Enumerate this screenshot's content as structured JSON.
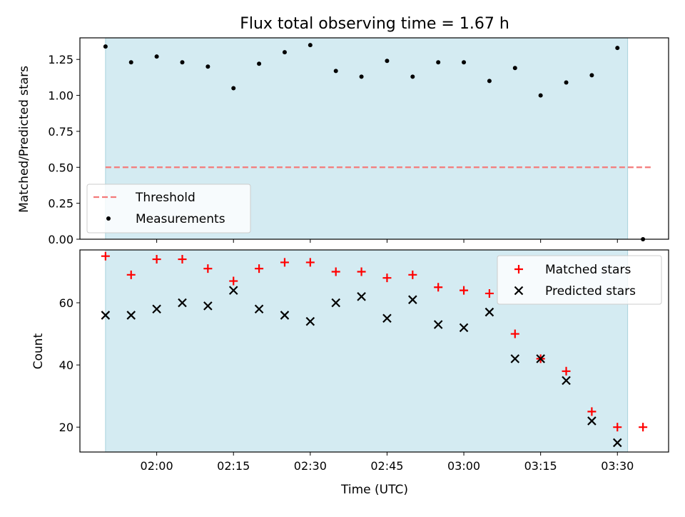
{
  "chart_data": {
    "title": "Flux total observing time = 1.67 h",
    "xlabel": "Time (UTC)",
    "x_ticks": [
      "02:00",
      "02:15",
      "02:30",
      "02:45",
      "03:00",
      "03:15",
      "03:30"
    ],
    "x_range": [
      "01:45",
      "03:40"
    ],
    "shaded_span": [
      "01:50",
      "03:32"
    ],
    "shade_color": "#d4ebf2",
    "panels": [
      {
        "type": "scatter",
        "ylabel": "Matched/Predicted stars",
        "ylim": [
          0,
          1.4
        ],
        "y_ticks": [
          "0.00",
          "0.25",
          "0.50",
          "0.75",
          "1.00",
          "1.25"
        ],
        "legend_position": "lower-left",
        "threshold": {
          "name": "Threshold",
          "value": 0.5,
          "x_start": "01:50",
          "x_end": "03:37",
          "color": "#f47a7a"
        },
        "series": [
          {
            "name": "Measurements",
            "marker": "dot",
            "color": "#000000",
            "x": [
              "01:50",
              "01:55",
              "02:00",
              "02:05",
              "02:10",
              "02:15",
              "02:20",
              "02:25",
              "02:30",
              "02:35",
              "02:40",
              "02:45",
              "02:50",
              "02:55",
              "03:00",
              "03:05",
              "03:10",
              "03:15",
              "03:20",
              "03:25",
              "03:30",
              "03:35"
            ],
            "y": [
              1.34,
              1.23,
              1.27,
              1.23,
              1.2,
              1.05,
              1.22,
              1.3,
              1.35,
              1.17,
              1.13,
              1.24,
              1.13,
              1.23,
              1.23,
              1.1,
              1.19,
              1.0,
              1.09,
              1.14,
              1.33,
              0.0
            ]
          }
        ]
      },
      {
        "type": "scatter",
        "ylabel": "Count",
        "ylim": [
          12,
          77
        ],
        "y_ticks": [
          "20",
          "40",
          "60"
        ],
        "legend_position": "upper-right",
        "series": [
          {
            "name": "Matched stars",
            "marker": "plus",
            "color": "#ff0000",
            "x": [
              "01:50",
              "01:55",
              "02:00",
              "02:05",
              "02:10",
              "02:15",
              "02:20",
              "02:25",
              "02:30",
              "02:35",
              "02:40",
              "02:45",
              "02:50",
              "02:55",
              "03:00",
              "03:05",
              "03:10",
              "03:15",
              "03:20",
              "03:25",
              "03:30",
              "03:35"
            ],
            "y": [
              75,
              69,
              74,
              74,
              71,
              67,
              71,
              73,
              73,
              70,
              70,
              68,
              69,
              65,
              64,
              63,
              50,
              42,
              38,
              25,
              20,
              20
            ]
          },
          {
            "name": "Predicted stars",
            "marker": "x",
            "color": "#000000",
            "x": [
              "01:50",
              "01:55",
              "02:00",
              "02:05",
              "02:10",
              "02:15",
              "02:20",
              "02:25",
              "02:30",
              "02:35",
              "02:40",
              "02:45",
              "02:50",
              "02:55",
              "03:00",
              "03:05",
              "03:10",
              "03:15",
              "03:20",
              "03:25",
              "03:30"
            ],
            "y": [
              56,
              56,
              58,
              60,
              59,
              64,
              58,
              56,
              54,
              60,
              62,
              55,
              61,
              53,
              52,
              57,
              42,
              42,
              35,
              22,
              15
            ]
          }
        ]
      }
    ]
  }
}
